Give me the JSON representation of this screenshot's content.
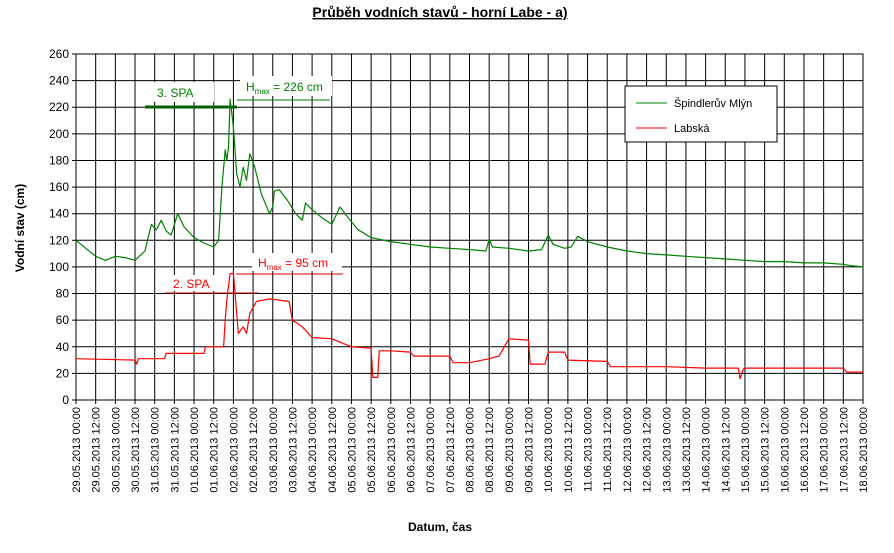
{
  "chart_data": {
    "type": "line",
    "title": "Průběh vodních stavů - horní Labe - a)",
    "xlabel": "Datum, čas",
    "ylabel": "Vodní stav (cm)",
    "ylim": [
      0,
      260
    ],
    "ytick_step": 20,
    "xlim": [
      "2013-05-29T00:00",
      "2013-06-18T00:00"
    ],
    "x_tick_labels": [
      "29.05.2013 00:00",
      "29.05.2013 12:00",
      "30.05.2013 00:00",
      "30.05.2013 12:00",
      "31.05.2013 00:00",
      "31.05.2013 12:00",
      "01.06.2013 00:00",
      "01.06.2013 12:00",
      "02.06.2013 00:00",
      "02.06.2013 12:00",
      "03.06.2013 00:00",
      "03.06.2013 12:00",
      "04.06.2013 00:00",
      "04.06.2013 12:00",
      "05.06.2013 00:00",
      "05.06.2013 12:00",
      "06.06.2013 00:00",
      "06.06.2013 12:00",
      "07.06.2013 00:00",
      "07.06.2013 12:00",
      "08.06.2013 00:00",
      "08.06.2013 12:00",
      "09.06.2013 00:00",
      "09.06.2013 12:00",
      "10.06.2013 00:00",
      "10.06.2013 12:00",
      "11.06.2013 00:00",
      "11.06.2013 12:00",
      "12.06.2013 00:00",
      "12.06.2013 12:00",
      "13.06.2013 00:00",
      "13.06.2013 12:00",
      "14.06.2013 00:00",
      "14.06.2013 12:00",
      "15.06.2013 00:00",
      "15.06.2013 12:00",
      "16.06.2013 00:00",
      "16.06.2013 12:00",
      "17.06.2013 00:00",
      "17.06.2013 12:00",
      "18.06.2013 00:00"
    ],
    "grid": true,
    "legend_position": "top-right",
    "series": [
      {
        "name": "Špindlerův Mlýn",
        "color": "#008000",
        "points": [
          [
            "2013-05-29T00:00",
            120
          ],
          [
            "2013-05-29T06:00",
            114
          ],
          [
            "2013-05-29T12:00",
            108
          ],
          [
            "2013-05-29T18:00",
            105
          ],
          [
            "2013-05-30T00:00",
            108
          ],
          [
            "2013-05-30T06:00",
            107
          ],
          [
            "2013-05-30T12:00",
            105
          ],
          [
            "2013-05-30T18:00",
            112
          ],
          [
            "2013-05-30T22:00",
            132
          ],
          [
            "2013-05-31T01:00",
            128
          ],
          [
            "2013-05-31T04:00",
            135
          ],
          [
            "2013-05-31T07:00",
            127
          ],
          [
            "2013-05-31T10:00",
            124
          ],
          [
            "2013-05-31T14:00",
            140
          ],
          [
            "2013-05-31T18:00",
            130
          ],
          [
            "2013-06-01T00:00",
            122
          ],
          [
            "2013-06-01T06:00",
            118
          ],
          [
            "2013-06-01T12:00",
            115
          ],
          [
            "2013-06-01T15:00",
            120
          ],
          [
            "2013-06-01T17:00",
            160
          ],
          [
            "2013-06-01T19:00",
            188
          ],
          [
            "2013-06-01T20:00",
            180
          ],
          [
            "2013-06-01T21:00",
            190
          ],
          [
            "2013-06-01T22:00",
            226
          ],
          [
            "2013-06-02T00:00",
            205
          ],
          [
            "2013-06-02T02:00",
            170
          ],
          [
            "2013-06-02T04:00",
            160
          ],
          [
            "2013-06-02T06:00",
            175
          ],
          [
            "2013-06-02T08:00",
            165
          ],
          [
            "2013-06-02T10:00",
            185
          ],
          [
            "2013-06-02T13:00",
            175
          ],
          [
            "2013-06-02T17:00",
            155
          ],
          [
            "2013-06-02T22:00",
            140
          ],
          [
            "2013-06-03T00:00",
            145
          ],
          [
            "2013-06-03T01:00",
            157
          ],
          [
            "2013-06-03T04:00",
            158
          ],
          [
            "2013-06-03T09:00",
            150
          ],
          [
            "2013-06-03T14:00",
            140
          ],
          [
            "2013-06-03T18:00",
            135
          ],
          [
            "2013-06-03T20:00",
            148
          ],
          [
            "2013-06-04T00:00",
            143
          ],
          [
            "2013-06-04T06:00",
            137
          ],
          [
            "2013-06-04T12:00",
            132
          ],
          [
            "2013-06-04T17:00",
            145
          ],
          [
            "2013-06-04T22:00",
            137
          ],
          [
            "2013-06-05T04:00",
            128
          ],
          [
            "2013-06-05T12:00",
            122
          ],
          [
            "2013-06-06T00:00",
            119
          ],
          [
            "2013-06-06T12:00",
            117
          ],
          [
            "2013-06-07T00:00",
            115
          ],
          [
            "2013-06-07T12:00",
            114
          ],
          [
            "2013-06-08T00:00",
            113
          ],
          [
            "2013-06-08T10:00",
            112
          ],
          [
            "2013-06-08T12:00",
            121
          ],
          [
            "2013-06-08T14:00",
            115
          ],
          [
            "2013-06-09T00:00",
            114
          ],
          [
            "2013-06-09T12:00",
            112
          ],
          [
            "2013-06-09T20:00",
            113
          ],
          [
            "2013-06-10T00:00",
            124
          ],
          [
            "2013-06-10T03:00",
            117
          ],
          [
            "2013-06-10T10:00",
            114
          ],
          [
            "2013-06-10T14:00",
            115
          ],
          [
            "2013-06-10T18:00",
            123
          ],
          [
            "2013-06-11T00:00",
            119
          ],
          [
            "2013-06-11T12:00",
            115
          ],
          [
            "2013-06-12T00:00",
            112
          ],
          [
            "2013-06-12T12:00",
            110
          ],
          [
            "2013-06-13T00:00",
            109
          ],
          [
            "2013-06-13T12:00",
            108
          ],
          [
            "2013-06-14T00:00",
            107
          ],
          [
            "2013-06-14T12:00",
            106
          ],
          [
            "2013-06-15T00:00",
            105
          ],
          [
            "2013-06-15T12:00",
            104
          ],
          [
            "2013-06-16T00:00",
            104
          ],
          [
            "2013-06-16T12:00",
            103
          ],
          [
            "2013-06-17T00:00",
            103
          ],
          [
            "2013-06-17T12:00",
            102
          ],
          [
            "2013-06-17T16:00",
            101
          ],
          [
            "2013-06-18T00:00",
            100
          ]
        ]
      },
      {
        "name": "Labská",
        "color": "#ff0000",
        "points": [
          [
            "2013-05-29T00:00",
            31
          ],
          [
            "2013-05-30T12:00",
            30
          ],
          [
            "2013-05-30T13:00",
            27
          ],
          [
            "2013-05-30T14:00",
            31
          ],
          [
            "2013-05-31T06:00",
            31
          ],
          [
            "2013-05-31T07:00",
            35
          ],
          [
            "2013-06-01T06:00",
            35
          ],
          [
            "2013-06-01T07:00",
            40
          ],
          [
            "2013-06-01T18:00",
            40
          ],
          [
            "2013-06-01T19:00",
            60
          ],
          [
            "2013-06-01T20:00",
            75
          ],
          [
            "2013-06-01T22:00",
            95
          ],
          [
            "2013-06-02T00:00",
            95
          ],
          [
            "2013-06-02T02:00",
            65
          ],
          [
            "2013-06-02T03:00",
            50
          ],
          [
            "2013-06-02T06:00",
            55
          ],
          [
            "2013-06-02T08:00",
            50
          ],
          [
            "2013-06-02T10:00",
            65
          ],
          [
            "2013-06-02T14:00",
            74
          ],
          [
            "2013-06-02T22:00",
            76
          ],
          [
            "2013-06-03T10:00",
            74
          ],
          [
            "2013-06-03T12:00",
            60
          ],
          [
            "2013-06-03T18:00",
            55
          ],
          [
            "2013-06-04T00:00",
            47
          ],
          [
            "2013-06-04T12:00",
            46
          ],
          [
            "2013-06-05T00:00",
            40
          ],
          [
            "2013-06-05T12:00",
            39
          ],
          [
            "2013-06-05T13:00",
            17
          ],
          [
            "2013-06-05T16:00",
            17
          ],
          [
            "2013-06-05T17:00",
            37
          ],
          [
            "2013-06-06T00:00",
            37
          ],
          [
            "2013-06-06T12:00",
            36
          ],
          [
            "2013-06-06T14:00",
            33
          ],
          [
            "2013-06-07T12:00",
            33
          ],
          [
            "2013-06-07T14:00",
            28
          ],
          [
            "2013-06-08T00:00",
            28
          ],
          [
            "2013-06-08T12:00",
            31
          ],
          [
            "2013-06-08T18:00",
            33
          ],
          [
            "2013-06-09T00:00",
            46
          ],
          [
            "2013-06-09T12:00",
            45
          ],
          [
            "2013-06-09T13:00",
            27
          ],
          [
            "2013-06-09T22:00",
            27
          ],
          [
            "2013-06-10T00:00",
            36
          ],
          [
            "2013-06-10T10:00",
            36
          ],
          [
            "2013-06-10T12:00",
            30
          ],
          [
            "2013-06-11T12:00",
            29
          ],
          [
            "2013-06-11T14:00",
            25
          ],
          [
            "2013-06-13T00:00",
            25
          ],
          [
            "2013-06-14T00:00",
            24
          ],
          [
            "2013-06-14T20:00",
            24
          ],
          [
            "2013-06-14T21:00",
            16
          ],
          [
            "2013-06-14T23:00",
            23
          ],
          [
            "2013-06-15T00:00",
            24
          ],
          [
            "2013-06-17T12:00",
            24
          ],
          [
            "2013-06-17T14:00",
            21
          ],
          [
            "2013-06-18T00:00",
            21
          ]
        ]
      }
    ],
    "annotations": [
      {
        "text": "3. SPA",
        "color": "#008000",
        "y": 219
      },
      {
        "text": "H",
        "sub": "max",
        "suffix": " = 226 cm",
        "color": "#008000",
        "y": 226
      },
      {
        "text": "2. SPA",
        "color": "#ff0000",
        "y": 80
      },
      {
        "text": "H",
        "sub": "max",
        "suffix": " = 95 cm",
        "color": "#ff0000",
        "y": 95
      }
    ]
  }
}
